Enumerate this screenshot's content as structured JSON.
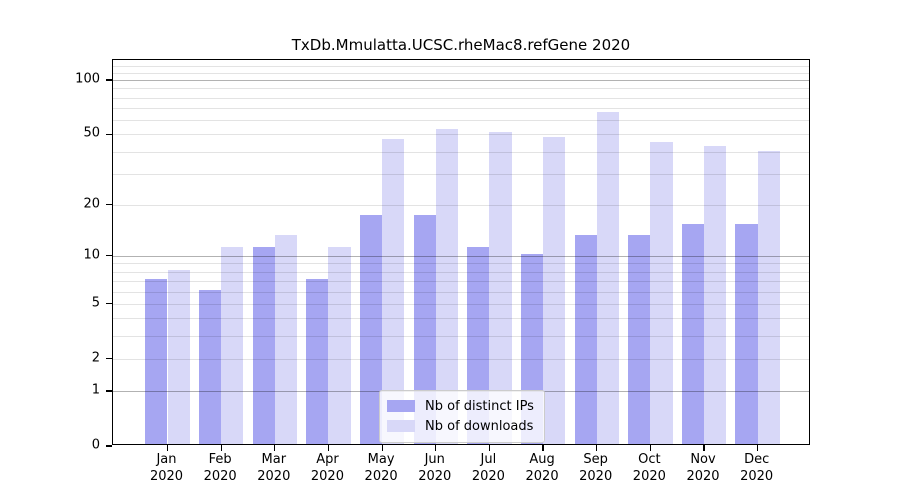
{
  "page": {
    "background": "#ffffff"
  },
  "chart_data": {
    "type": "bar",
    "title": "TxDb.Mmulatta.UCSC.rheMac8.refGene 2020",
    "year_label": "2020",
    "categories": [
      "Jan",
      "Feb",
      "Mar",
      "Apr",
      "May",
      "Jun",
      "Jul",
      "Aug",
      "Sep",
      "Oct",
      "Nov",
      "Dec"
    ],
    "series": [
      {
        "name": "Nb of distinct IPs",
        "color": "#a6a6f2",
        "values": [
          7,
          6,
          11,
          7,
          17,
          17,
          11,
          10,
          13,
          13,
          15,
          15
        ]
      },
      {
        "name": "Nb of downloads",
        "color": "#d8d8f8",
        "values": [
          8,
          11,
          13,
          11,
          46,
          52,
          50,
          47,
          65,
          44,
          42,
          39
        ]
      }
    ],
    "y_axis": {
      "scale": "log1p",
      "tick_values": [
        0,
        1,
        2,
        5,
        10,
        20,
        50,
        100
      ],
      "major_gridlines": [
        1,
        10,
        100
      ],
      "minor_gridlines": [
        2,
        3,
        4,
        5,
        6,
        7,
        8,
        9,
        20,
        30,
        40,
        50,
        60,
        70,
        80,
        90,
        110,
        120
      ],
      "ylim": [
        0,
        128
      ]
    },
    "legend_position": "lower center",
    "grid": true,
    "colors": {
      "major_grid": "#b3b3b3",
      "minor_grid": "#e3e3e3",
      "axis": "#000000",
      "text": "#000000"
    }
  }
}
